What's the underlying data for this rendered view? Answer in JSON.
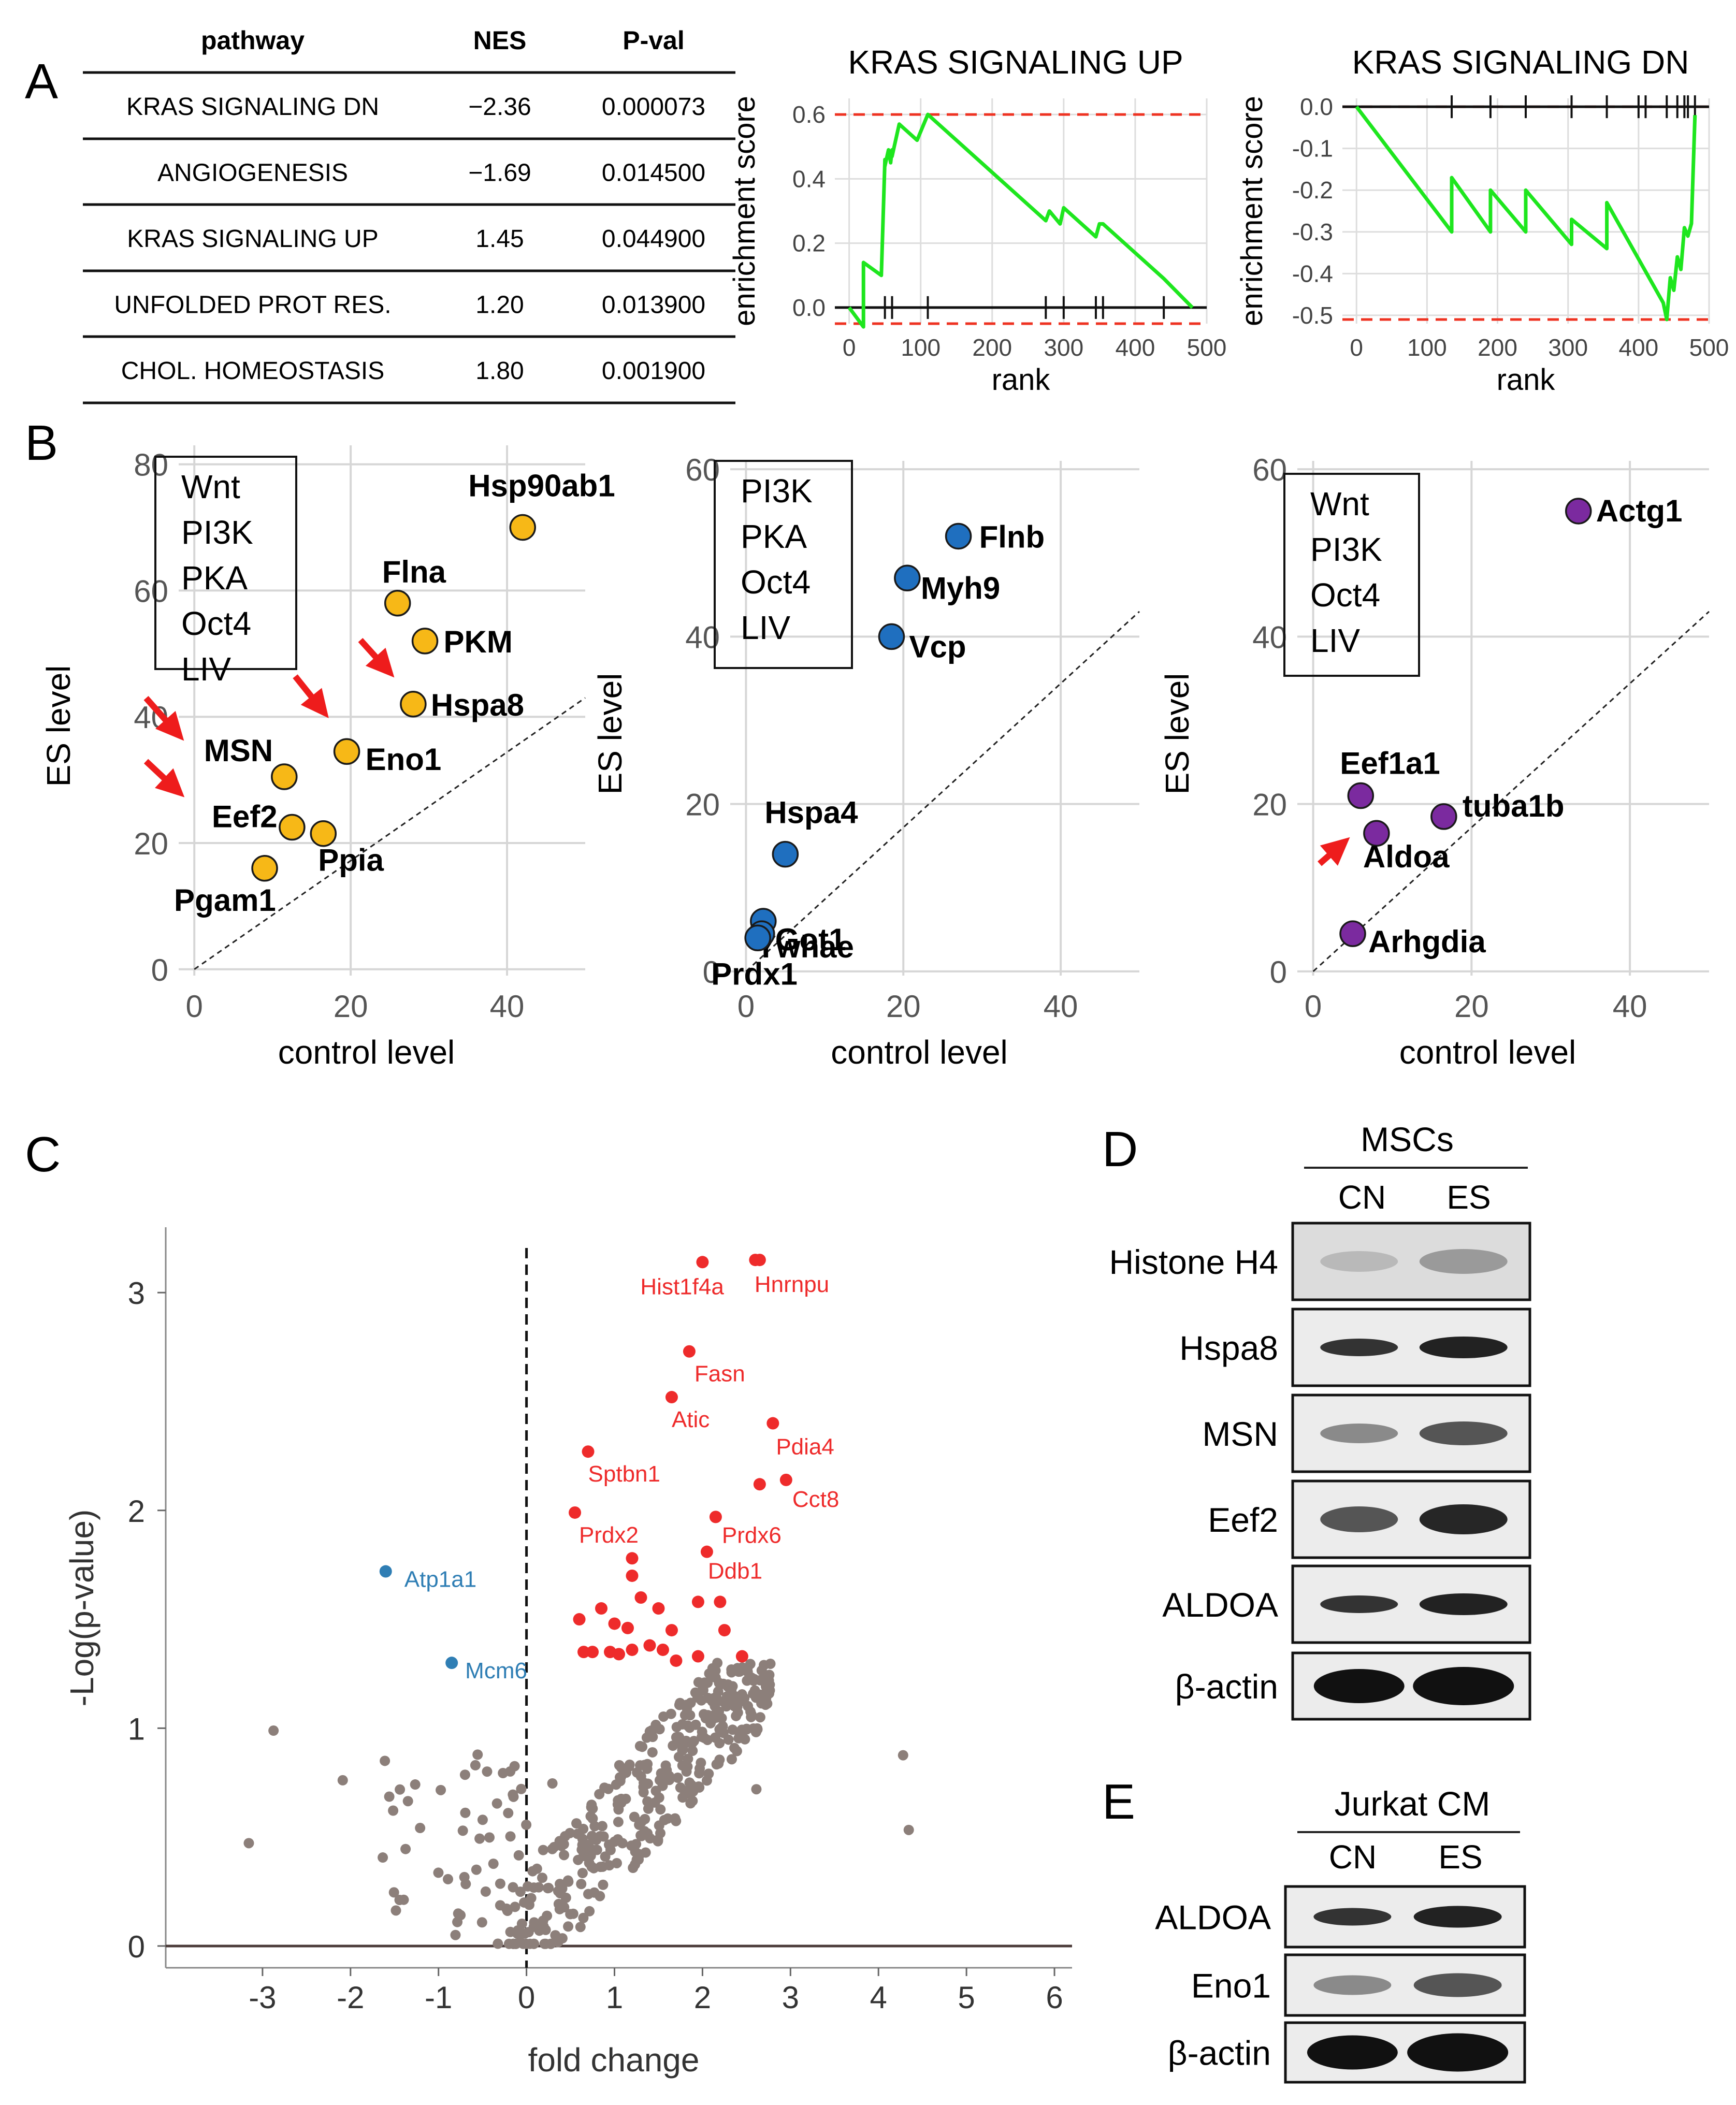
{
  "panels": {
    "A": {
      "letter": "A",
      "table": {
        "headers": [
          "pathway",
          "NES",
          "P-val"
        ],
        "rows": [
          [
            "KRAS SIGNALING DN",
            "−2.36",
            "0.000073"
          ],
          [
            "ANGIOGENESIS",
            "−1.69",
            "0.014500"
          ],
          [
            "KRAS SIGNALING UP",
            "1.45",
            "0.044900"
          ],
          [
            "UNFOLDED PROT RES.",
            "1.20",
            "0.013900"
          ],
          [
            "CHOL. HOMEOSTASIS",
            "1.80",
            "0.001900"
          ]
        ]
      }
    },
    "B": {
      "letter": "B"
    },
    "C": {
      "letter": "C"
    },
    "D": {
      "letter": "D",
      "group": "MSCs",
      "lanes": [
        "CN",
        "ES"
      ],
      "blots": [
        {
          "label": "Histone H4",
          "band": "faint"
        },
        {
          "label": "Hspa8",
          "band": "mid"
        },
        {
          "label": "MSN",
          "band": "faint2"
        },
        {
          "label": "Eef2",
          "band": "mid2"
        },
        {
          "label": "ALDOA",
          "band": "mid"
        },
        {
          "label": "β-actin",
          "band": "strong"
        }
      ]
    },
    "E": {
      "letter": "E",
      "group": "Jurkat CM",
      "lanes": [
        "CN",
        "ES"
      ],
      "blots": [
        {
          "label": "ALDOA",
          "band": "mid"
        },
        {
          "label": "Eno1",
          "band": "faint2"
        },
        {
          "label": "β-actin",
          "band": "strong"
        }
      ]
    }
  },
  "colors": {
    "green": "#1ee61e",
    "red_dash": "#ee3322",
    "gold": "#f7b817",
    "blue": "#1f6fbf",
    "purple": "#7b2a9f",
    "gray_dot": "#8c7f7a",
    "red_dot": "#ee2b2b",
    "blue_dot": "#2f7eb4",
    "arrow": "#ee1c1c"
  },
  "chart_data": [
    {
      "id": "gsea_up",
      "type": "line",
      "title": "KRAS SIGNALING UP",
      "xlabel": "rank",
      "ylabel": "enrichment score",
      "xlim": [
        -20,
        500
      ],
      "ylim": [
        -0.05,
        0.65
      ],
      "xticks": [
        0,
        100,
        200,
        300,
        400,
        500
      ],
      "yticks": [
        0.0,
        0.2,
        0.4,
        0.6
      ],
      "ytick_labels": [
        "0.0",
        "0.2",
        "0.4",
        "0.6"
      ],
      "max_line": 0.6,
      "min_line": -0.05,
      "x": [
        0,
        20,
        20,
        45,
        50,
        50,
        55,
        58,
        60,
        60,
        70,
        95,
        110,
        275,
        280,
        295,
        300,
        345,
        350,
        355,
        440,
        480,
        480
      ],
      "y": [
        0.0,
        -0.06,
        0.14,
        0.1,
        0.46,
        0.44,
        0.49,
        0.45,
        0.49,
        0.47,
        0.57,
        0.52,
        0.6,
        0.27,
        0.3,
        0.26,
        0.31,
        0.22,
        0.26,
        0.26,
        0.09,
        0.0,
        0.0
      ],
      "hit_ranks": [
        20,
        50,
        60,
        110,
        275,
        300,
        345,
        355,
        440
      ]
    },
    {
      "id": "gsea_dn",
      "type": "line",
      "title": "KRAS SIGNALING DN",
      "xlabel": "rank",
      "ylabel": "enrichment score",
      "xlim": [
        -20,
        500
      ],
      "ylim": [
        -0.52,
        0.02
      ],
      "xticks": [
        0,
        100,
        200,
        300,
        400,
        500
      ],
      "yticks": [
        0.0,
        -0.1,
        -0.2,
        -0.3,
        -0.4,
        -0.5
      ],
      "ytick_labels": [
        "0.0",
        "-0.1",
        "-0.2",
        "-0.3",
        "-0.4",
        "-0.5"
      ],
      "max_line": 0.0,
      "min_line": -0.51,
      "x": [
        0,
        135,
        135,
        190,
        190,
        240,
        240,
        305,
        305,
        355,
        355,
        435,
        440,
        445,
        450,
        455,
        460,
        465,
        470,
        475,
        480
      ],
      "y": [
        0.0,
        -0.3,
        -0.17,
        -0.3,
        -0.2,
        -0.3,
        -0.2,
        -0.33,
        -0.27,
        -0.34,
        -0.23,
        -0.47,
        -0.51,
        -0.41,
        -0.44,
        -0.36,
        -0.39,
        -0.29,
        -0.31,
        -0.28,
        -0.02
      ],
      "hit_ranks": [
        135,
        190,
        240,
        305,
        355,
        400,
        410,
        440,
        455,
        465,
        470,
        480
      ]
    },
    {
      "id": "scatter_1",
      "type": "scatter",
      "xlabel": "control level",
      "ylabel": "ES level",
      "xlim": [
        -2,
        50
      ],
      "ylim": [
        -1,
        83
      ],
      "xticks": [
        0,
        20,
        40
      ],
      "yticks": [
        0,
        20,
        40,
        60,
        80
      ],
      "legend_box": [
        "Wnt",
        "PI3K",
        "PKA",
        "Oct4",
        "LIV"
      ],
      "points": [
        {
          "label": "Hsp90ab1",
          "x": 42,
          "y": 70
        },
        {
          "label": "Flna",
          "x": 26,
          "y": 58
        },
        {
          "label": "PKM",
          "x": 29.5,
          "y": 52
        },
        {
          "label": "Hspa8",
          "x": 28,
          "y": 42
        },
        {
          "label": "Eno1",
          "x": 19.5,
          "y": 34.5
        },
        {
          "label": "MSN",
          "x": 11.5,
          "y": 30.5
        },
        {
          "label": "Eef2",
          "x": 12.5,
          "y": 22.5
        },
        {
          "label": "Ppia",
          "x": 16.5,
          "y": 21.5
        },
        {
          "label": "Pgam1",
          "x": 9,
          "y": 16
        }
      ],
      "arrows": [
        "MSN",
        "Eef2",
        "Eno1",
        "Hspa8"
      ]
    },
    {
      "id": "scatter_2",
      "type": "scatter",
      "xlabel": "control level",
      "ylabel": "ES level",
      "xlim": [
        -2,
        50
      ],
      "ylim": [
        -0.5,
        61
      ],
      "xticks": [
        0,
        20,
        40
      ],
      "yticks": [
        0,
        20,
        40,
        60
      ],
      "legend_box": [
        "PI3K",
        "PKA",
        "Oct4",
        "LIV"
      ],
      "points": [
        {
          "label": "Flnb",
          "x": 27,
          "y": 52
        },
        {
          "label": "Myh9",
          "x": 20.5,
          "y": 47
        },
        {
          "label": "Vcp",
          "x": 18.5,
          "y": 40
        },
        {
          "label": "Hspa4",
          "x": 5,
          "y": 14
        },
        {
          "label": "Ywhae",
          "x": 2.2,
          "y": 6
        },
        {
          "label": "Got1",
          "x": 2,
          "y": 4.5
        },
        {
          "label": "Prdx1",
          "x": 1.5,
          "y": 4
        }
      ],
      "arrows": []
    },
    {
      "id": "scatter_3",
      "type": "scatter",
      "xlabel": "control level",
      "ylabel": "ES level",
      "xlim": [
        -2,
        50
      ],
      "ylim": [
        -0.5,
        61
      ],
      "xticks": [
        0,
        20,
        40
      ],
      "yticks": [
        0,
        20,
        40,
        60
      ],
      "legend_box": [
        "Wnt",
        "PI3K",
        "Oct4",
        "LIV"
      ],
      "points": [
        {
          "label": "Actg1",
          "x": 33.5,
          "y": 55
        },
        {
          "label": "Eef1a1",
          "x": 6,
          "y": 21
        },
        {
          "label": "tuba1b",
          "x": 16.5,
          "y": 18.5
        },
        {
          "label": "Aldoa",
          "x": 8,
          "y": 16.5
        },
        {
          "label": "Arhgdia",
          "x": 5,
          "y": 4.5
        }
      ],
      "arrows": [
        "Aldoa"
      ]
    },
    {
      "id": "volcano",
      "type": "scatter",
      "xlabel": "fold change",
      "ylabel": "-Log(p-value)",
      "xlim": [
        -4.1,
        6.2
      ],
      "ylim": [
        -0.1,
        3.3
      ],
      "xticks": [
        -3,
        -2,
        -1,
        0,
        1,
        2,
        3,
        4,
        5,
        6
      ],
      "yticks": [
        0,
        1,
        2,
        3
      ],
      "labeled_points": [
        {
          "label": "Hist1f4a",
          "x": 2.0,
          "y": 3.14,
          "group": "up"
        },
        {
          "label": "Hnrnpu",
          "x": 2.65,
          "y": 3.15,
          "group": "up"
        },
        {
          "label": "Fasn",
          "x": 1.85,
          "y": 2.73,
          "group": "up"
        },
        {
          "label": "Atic",
          "x": 1.65,
          "y": 2.52,
          "group": "up"
        },
        {
          "label": "Pdia4",
          "x": 2.8,
          "y": 2.4,
          "group": "up"
        },
        {
          "label": "Sptbn1",
          "x": 0.7,
          "y": 2.27,
          "group": "up"
        },
        {
          "label": "Cct8",
          "x": 2.95,
          "y": 2.14,
          "group": "up"
        },
        {
          "label": "Prdx2",
          "x": 0.55,
          "y": 1.99,
          "group": "up"
        },
        {
          "label": "Prdx6",
          "x": 2.15,
          "y": 1.97,
          "group": "up"
        },
        {
          "label": "Ddb1",
          "x": 2.05,
          "y": 1.81,
          "group": "up"
        },
        {
          "label": "Atp1a1",
          "x": -1.6,
          "y": 1.72,
          "group": "down"
        },
        {
          "label": "Mcm6",
          "x": -0.85,
          "y": 1.3,
          "group": "down"
        }
      ],
      "sig_points": [
        [
          1.2,
          1.78
        ],
        [
          1.2,
          1.7
        ],
        [
          1.3,
          1.6
        ],
        [
          1.5,
          1.55
        ],
        [
          0.85,
          1.55
        ],
        [
          0.6,
          1.5
        ],
        [
          1.0,
          1.48
        ],
        [
          1.15,
          1.46
        ],
        [
          1.65,
          1.45
        ],
        [
          1.95,
          1.58
        ],
        [
          2.2,
          1.58
        ],
        [
          2.25,
          1.45
        ],
        [
          0.75,
          1.35
        ],
        [
          0.95,
          1.35
        ],
        [
          1.05,
          1.34
        ],
        [
          1.2,
          1.36
        ],
        [
          1.4,
          1.38
        ],
        [
          1.55,
          1.36
        ],
        [
          1.7,
          1.31
        ],
        [
          1.95,
          1.33
        ],
        [
          2.45,
          1.33
        ],
        [
          0.65,
          1.35
        ],
        [
          2.65,
          2.12
        ],
        [
          2.6,
          3.15
        ]
      ],
      "n_background_points": 430,
      "background_seed": 7
    }
  ]
}
